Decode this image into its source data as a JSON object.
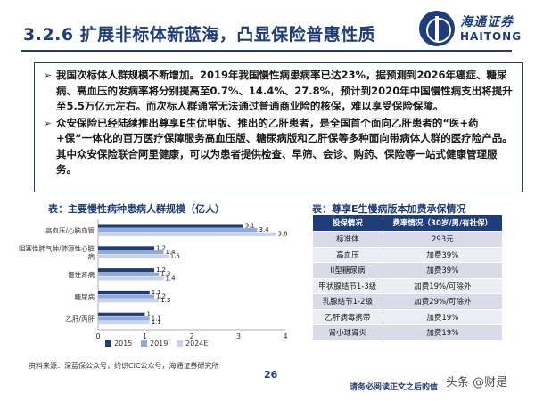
{
  "header": {
    "title": "3.2.6 扩展非标体新蓝海，凸显保险普惠性质",
    "logo_cn": "海通证券",
    "logo_en": "HAITONG"
  },
  "bullets": [
    "我国次标体人群规模不断增加。2019年我国慢性病患病率已达23%，据预测到2026年癌症、糖尿病、高血压的发病率将分别提高至0.7%、14.4%、27.8%，预计到2020年中国慢性病支出将提升至5.5万亿元左右。而次标人群通常无法通过普通商业险的核保，难以享受保险保障。",
    "众安保险已经陆续推出尊享E生优甲版、推出的乙肝患者，是全国首个面向乙肝患者的“医+药+保”一体化的百万医疗保障服务高血压版、糖尿病版和乙肝保等多种面向带病体人群的医疗险产品。其中众安保险联合阿里健康，可以为患者提供检查、早筛、会诊、购药、保险等一站式健康管理服务。"
  ],
  "chart": {
    "caption_lead": "表：",
    "caption": "主要慢性病种患病人群规模（亿人）"
  },
  "chart_data": {
    "type": "bar",
    "orientation": "horizontal",
    "title": "主要慢性病种患病人群规模（亿人）",
    "categories": [
      "高血压/心脑血管",
      "阻塞性肺气肿/肺源性心脏病",
      "慢性肾病",
      "糖尿病",
      "乙肝/丙肝"
    ],
    "category_lines": [
      [
        "高血压/心脑血管"
      ],
      [
        "阻塞性肺气肿/肺源性心脏",
        "病"
      ],
      [
        "慢性肾病"
      ],
      [
        "糖尿病"
      ],
      [
        "乙肝/丙肝"
      ]
    ],
    "series": [
      {
        "name": "2015",
        "values": [
          3.1,
          1.2,
          1.2,
          1.1,
          1.0
        ]
      },
      {
        "name": "2019",
        "values": [
          3.4,
          1.4,
          1.3,
          1.2,
          1.1
        ]
      },
      {
        "name": "2024E",
        "values": [
          3.8,
          1.5,
          1.4,
          1.3,
          1.1
        ]
      }
    ],
    "xlim": [
      0,
      4
    ],
    "xticks": [
      "0",
      "1",
      "2",
      "3",
      "4"
    ],
    "legend_position": "bottom",
    "colors": [
      "#1f3d7a",
      "#8faad6",
      "#c9d2ea"
    ]
  },
  "table": {
    "caption_lead": "表：",
    "caption": "尊享E生慢病版本加费承保情况",
    "headers": [
      "投保情况",
      "费率情况（30岁/男/有社保）"
    ],
    "rows": [
      [
        "标准体",
        "293元"
      ],
      [
        "高血压",
        "加费39%"
      ],
      [
        "II型糖尿病",
        "加费39%"
      ],
      [
        "甲状腺结节1-3级",
        "加费19%/可除外"
      ],
      [
        "乳腺结节1-2级",
        "加费29%/可除外"
      ],
      [
        "乙肝病毒携带",
        "加费19%"
      ],
      [
        "肾小球肾炎",
        "加费19%"
      ]
    ]
  },
  "footer": {
    "source": "资料来源：深蓝保公众号，约识CIC公众号，海通证券研究所",
    "page_number": "26",
    "disclaimer": "请务必阅读正文之后的信",
    "watermark": "头条 @财是"
  },
  "colors": {
    "brand": "#1f3d7a",
    "table_row_light": "#eceef5",
    "table_row_dark": "#d9dbe8"
  }
}
